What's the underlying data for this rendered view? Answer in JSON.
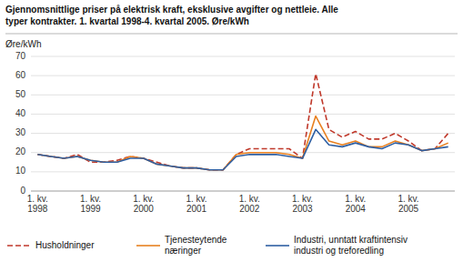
{
  "chart_data": {
    "type": "line",
    "title": "Gjennomsnittlige priser på elektrisk kraft, eksklusive avgifter og nettleie. Alle\ntyper kontrakter. 1. kvartal 1998-4. kvartal 2005. Øre/kWh",
    "y_label": "Øre/kWh",
    "categories": [
      "1. kv.\n1998",
      null,
      null,
      null,
      "1. kv.\n1999",
      null,
      null,
      null,
      "1. kv.\n2000",
      null,
      null,
      null,
      "1. kv.\n2001",
      null,
      null,
      null,
      "1. kv.\n2002",
      null,
      null,
      null,
      "1. kv.\n2003",
      null,
      null,
      null,
      "1. kv.\n2004",
      null,
      null,
      null,
      "1. kv.\n2005",
      null,
      null,
      null
    ],
    "series": [
      {
        "name": "Husholdninger",
        "color": "#c0392b",
        "line_style": "dashed",
        "values": [
          19,
          18,
          17,
          19,
          15,
          15,
          16,
          18,
          17,
          15,
          13,
          12,
          12,
          11,
          11,
          19,
          22,
          22,
          22,
          22,
          17,
          61,
          32,
          28,
          31,
          27,
          27,
          30,
          26,
          21,
          22,
          30
        ]
      },
      {
        "name": "Tjenesteytende\nnæringer",
        "color": "#e88020",
        "line_style": "solid",
        "values": [
          19,
          18,
          17,
          18,
          16,
          15,
          15,
          18,
          17,
          14,
          13,
          12,
          12,
          11,
          11,
          19,
          20,
          20,
          20,
          19,
          17,
          39,
          26,
          24,
          26,
          23,
          23,
          26,
          24,
          21,
          22,
          25
        ]
      },
      {
        "name": "Industri, unntatt kraftintensiv\nindustri og treforedling",
        "color": "#2e5fa3",
        "line_style": "solid",
        "values": [
          19,
          18,
          17,
          18,
          16,
          15,
          15,
          17,
          17,
          14,
          13,
          12,
          12,
          11,
          11,
          18,
          19,
          19,
          19,
          18,
          17,
          32,
          24,
          23,
          25,
          23,
          22,
          25,
          24,
          21,
          22,
          23
        ]
      }
    ],
    "ylim": [
      0,
      70
    ],
    "yticks": [
      0,
      10,
      20,
      30,
      40,
      50,
      60,
      70
    ],
    "grid": true,
    "legend": "bottom"
  }
}
